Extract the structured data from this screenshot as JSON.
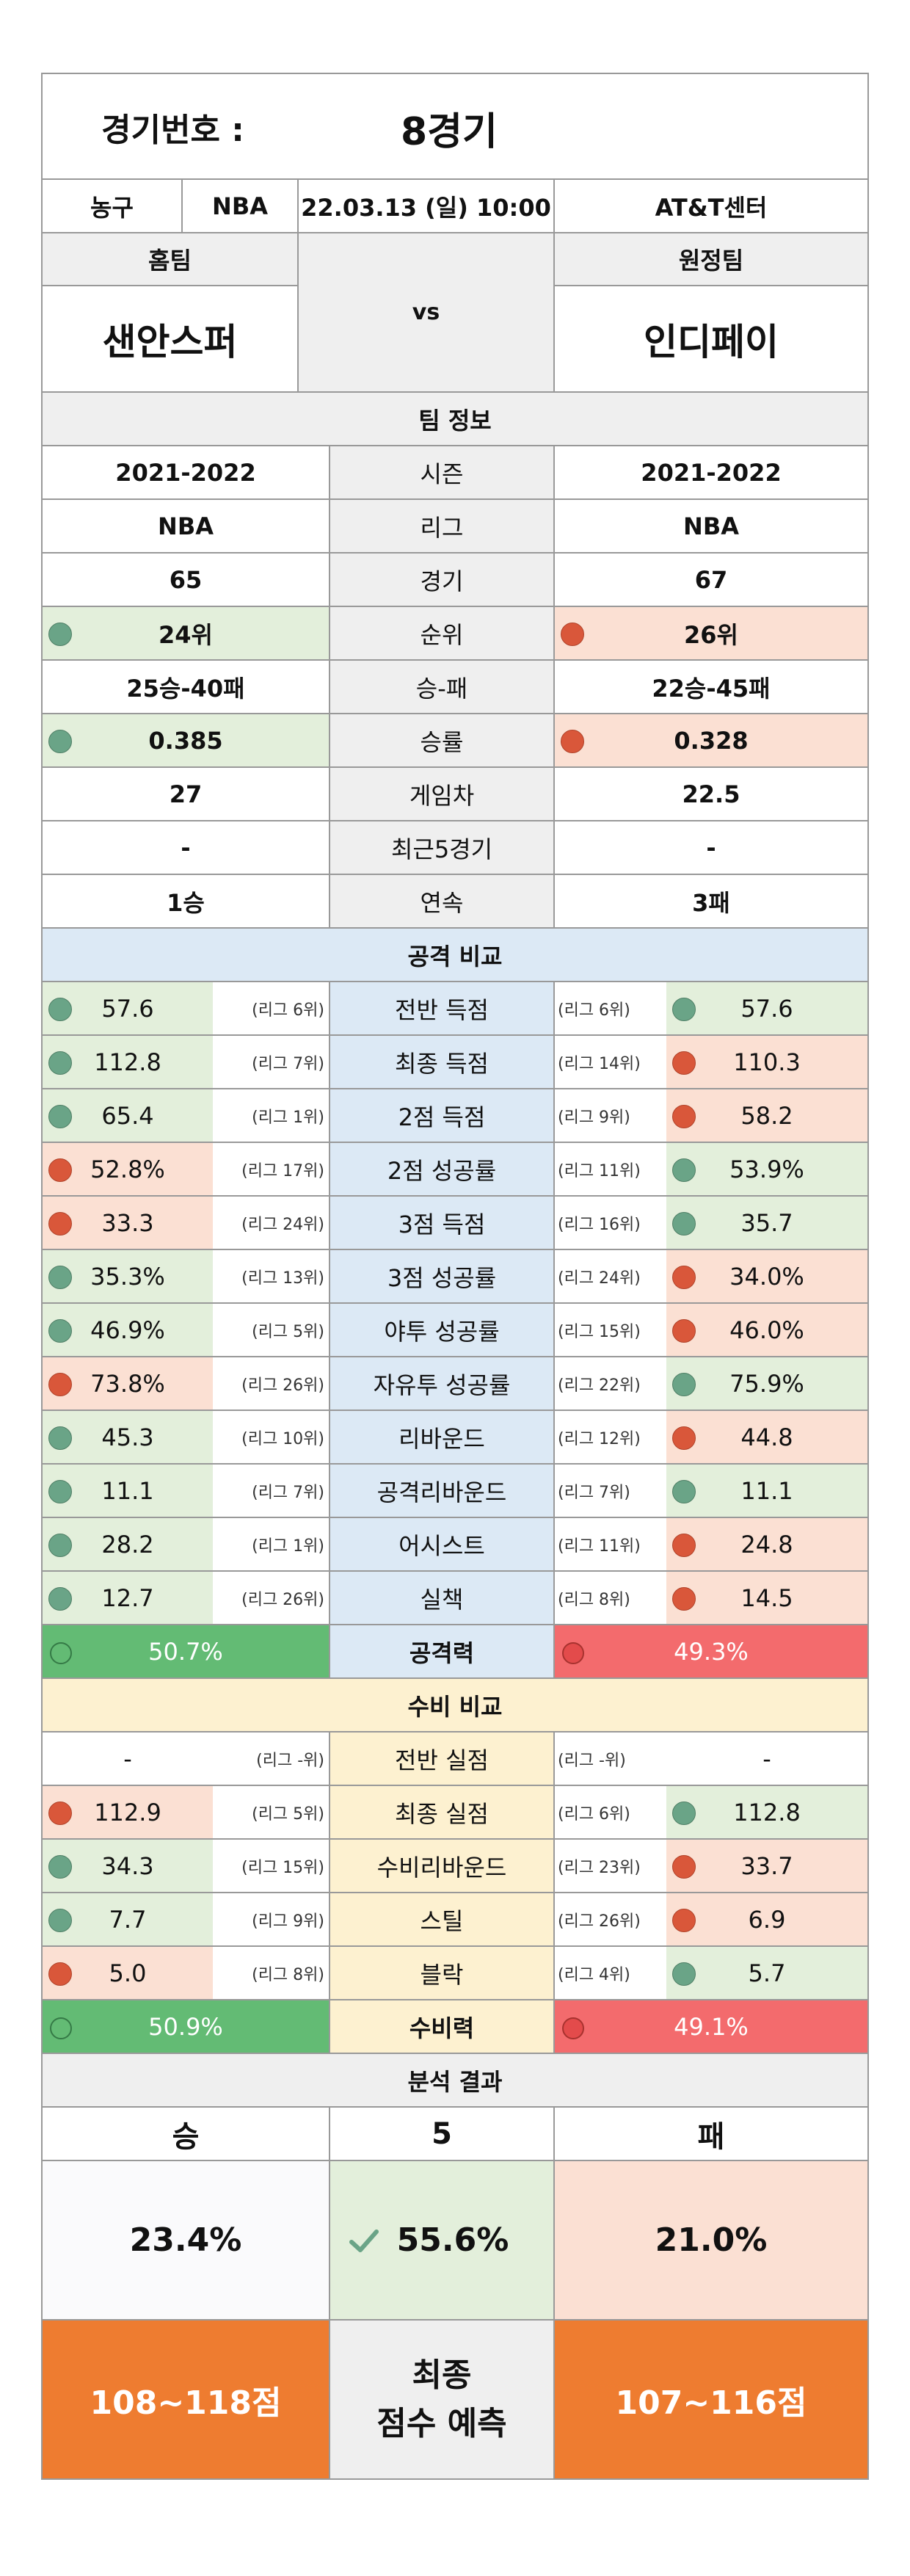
{
  "header": {
    "label": "경기번호 :",
    "value": "8경기"
  },
  "info": {
    "sport": "농구",
    "league": "NBA",
    "datetime": "22.03.13 (일) 10:00",
    "venue": "AT&T센터"
  },
  "teams": {
    "home_label": "홈팀",
    "away_label": "원정팀",
    "home": "샌안스퍼",
    "away": "인디페이",
    "vs": "vs"
  },
  "team_info": {
    "title": "팀 정보",
    "rows": [
      {
        "label": "시즌",
        "home": "2021-2022",
        "away": "2021-2022"
      },
      {
        "label": "리그",
        "home": "NBA",
        "away": "NBA"
      },
      {
        "label": "경기",
        "home": "65",
        "away": "67"
      },
      {
        "label": "순위",
        "home": "24위",
        "away": "26위",
        "home_dot": "green",
        "away_dot": "red"
      },
      {
        "label": "승-패",
        "home": "25승-40패",
        "away": "22승-45패"
      },
      {
        "label": "승률",
        "home": "0.385",
        "away": "0.328",
        "home_dot": "green",
        "away_dot": "red"
      },
      {
        "label": "게임차",
        "home": "27",
        "away": "22.5"
      },
      {
        "label": "최근5경기",
        "home": "-",
        "away": "-"
      },
      {
        "label": "연속",
        "home": "1승",
        "away": "3패"
      }
    ]
  },
  "attack": {
    "title": "공격 비교",
    "rows": [
      {
        "label": "전반 득점",
        "home": "57.6",
        "home_rank": "(리그 6위)",
        "home_dot": "green",
        "away": "57.6",
        "away_rank": "(리그 6위)",
        "away_dot": "green"
      },
      {
        "label": "최종 득점",
        "home": "112.8",
        "home_rank": "(리그 7위)",
        "home_dot": "green",
        "away": "110.3",
        "away_rank": "(리그 14위)",
        "away_dot": "red"
      },
      {
        "label": "2점 득점",
        "home": "65.4",
        "home_rank": "(리그 1위)",
        "home_dot": "green",
        "away": "58.2",
        "away_rank": "(리그 9위)",
        "away_dot": "red"
      },
      {
        "label": "2점 성공률",
        "home": "52.8%",
        "home_rank": "(리그 17위)",
        "home_dot": "red",
        "away": "53.9%",
        "away_rank": "(리그 11위)",
        "away_dot": "green"
      },
      {
        "label": "3점 득점",
        "home": "33.3",
        "home_rank": "(리그 24위)",
        "home_dot": "red",
        "away": "35.7",
        "away_rank": "(리그 16위)",
        "away_dot": "green"
      },
      {
        "label": "3점 성공률",
        "home": "35.3%",
        "home_rank": "(리그 13위)",
        "home_dot": "green",
        "away": "34.0%",
        "away_rank": "(리그 24위)",
        "away_dot": "red"
      },
      {
        "label": "야투 성공률",
        "home": "46.9%",
        "home_rank": "(리그 5위)",
        "home_dot": "green",
        "away": "46.0%",
        "away_rank": "(리그 15위)",
        "away_dot": "red"
      },
      {
        "label": "자유투 성공률",
        "home": "73.8%",
        "home_rank": "(리그 26위)",
        "home_dot": "red",
        "away": "75.9%",
        "away_rank": "(리그 22위)",
        "away_dot": "green"
      },
      {
        "label": "리바운드",
        "home": "45.3",
        "home_rank": "(리그 10위)",
        "home_dot": "green",
        "away": "44.8",
        "away_rank": "(리그 12위)",
        "away_dot": "red"
      },
      {
        "label": "공격리바운드",
        "home": "11.1",
        "home_rank": "(리그 7위)",
        "home_dot": "green",
        "away": "11.1",
        "away_rank": "(리그 7위)",
        "away_dot": "green"
      },
      {
        "label": "어시스트",
        "home": "28.2",
        "home_rank": "(리그 1위)",
        "home_dot": "green",
        "away": "24.8",
        "away_rank": "(리그 11위)",
        "away_dot": "red"
      },
      {
        "label": "실책",
        "home": "12.7",
        "home_rank": "(리그 26위)",
        "home_dot": "green",
        "away": "14.5",
        "away_rank": "(리그 8위)",
        "away_dot": "red"
      }
    ],
    "power": {
      "label": "공격력",
      "home": "50.7%",
      "away": "49.3%"
    }
  },
  "defense": {
    "title": "수비 비교",
    "rows": [
      {
        "label": "전반 실점",
        "home": "-",
        "home_rank": "(리그 -위)",
        "home_dot": "none",
        "away": "-",
        "away_rank": "(리그 -위)",
        "away_dot": "none"
      },
      {
        "label": "최종 실점",
        "home": "112.9",
        "home_rank": "(리그 5위)",
        "home_dot": "red",
        "away": "112.8",
        "away_rank": "(리그 6위)",
        "away_dot": "green"
      },
      {
        "label": "수비리바운드",
        "home": "34.3",
        "home_rank": "(리그 15위)",
        "home_dot": "green",
        "away": "33.7",
        "away_rank": "(리그 23위)",
        "away_dot": "red"
      },
      {
        "label": "스틸",
        "home": "7.7",
        "home_rank": "(리그 9위)",
        "home_dot": "green",
        "away": "6.9",
        "away_rank": "(리그 26위)",
        "away_dot": "red"
      },
      {
        "label": "블락",
        "home": "5.0",
        "home_rank": "(리그 8위)",
        "home_dot": "red",
        "away": "5.7",
        "away_rank": "(리그 4위)",
        "away_dot": "green"
      }
    ],
    "power": {
      "label": "수비력",
      "home": "50.9%",
      "away": "49.1%"
    }
  },
  "result": {
    "title": "분석 결과",
    "win_label": "승",
    "draw_label": "5",
    "loss_label": "패",
    "win_pct": "23.4%",
    "draw_pct": "55.6%",
    "loss_pct": "21.0%",
    "home_score": "108~118점",
    "away_score": "107~116점",
    "final_line1": "최종",
    "final_line2": "점수 예측"
  },
  "colors": {
    "green_dot": "#6aa487",
    "red_dot": "#d9573a",
    "orange": "#ee7c30"
  }
}
